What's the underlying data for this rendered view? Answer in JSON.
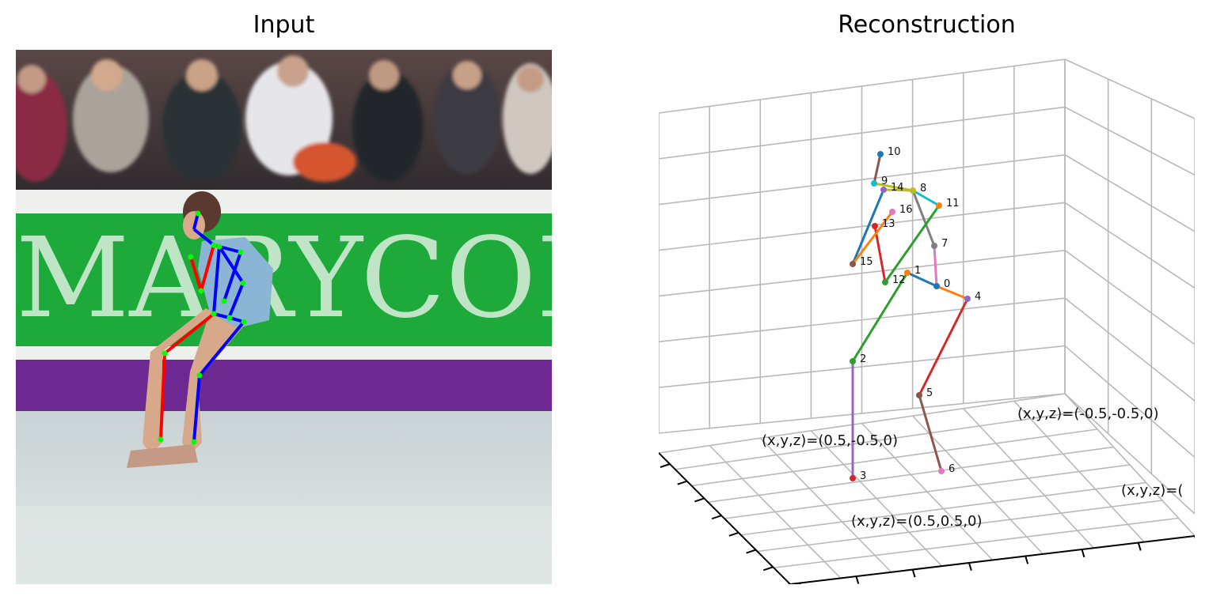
{
  "titles": {
    "left": "Input",
    "right": "Reconstruction"
  },
  "banner_text": "MARYCOH",
  "chart_data": {
    "type": "scatter",
    "subtype": "3d-skeleton",
    "title": "Reconstruction",
    "grid": true,
    "joints": [
      {
        "id": "0",
        "color": "#1f77b4"
      },
      {
        "id": "1",
        "color": "#ff7f0e"
      },
      {
        "id": "2",
        "color": "#2ca02c"
      },
      {
        "id": "3",
        "color": "#d62728"
      },
      {
        "id": "4",
        "color": "#9467bd"
      },
      {
        "id": "5",
        "color": "#8c564b"
      },
      {
        "id": "6",
        "color": "#e377c2"
      },
      {
        "id": "7",
        "color": "#7f7f7f"
      },
      {
        "id": "8",
        "color": "#bcbd22"
      },
      {
        "id": "9",
        "color": "#17becf"
      },
      {
        "id": "10",
        "color": "#1f77b4"
      },
      {
        "id": "11",
        "color": "#ff7f0e"
      },
      {
        "id": "12",
        "color": "#2ca02c"
      },
      {
        "id": "13",
        "color": "#d62728"
      },
      {
        "id": "14",
        "color": "#9467bd"
      },
      {
        "id": "15",
        "color": "#8c564b"
      },
      {
        "id": "16",
        "color": "#e377c2"
      }
    ],
    "bones": [
      {
        "from": "0",
        "to": "1",
        "color": "#1f77b4"
      },
      {
        "from": "0",
        "to": "4",
        "color": "#ff7f0e"
      },
      {
        "from": "1",
        "to": "2",
        "color": "#2ca02c"
      },
      {
        "from": "4",
        "to": "5",
        "color": "#d62728"
      },
      {
        "from": "2",
        "to": "3",
        "color": "#9467bd"
      },
      {
        "from": "5",
        "to": "6",
        "color": "#8c564b"
      },
      {
        "from": "0",
        "to": "7",
        "color": "#e377c2"
      },
      {
        "from": "7",
        "to": "8",
        "color": "#7f7f7f"
      },
      {
        "from": "8",
        "to": "9",
        "color": "#bcbd22"
      },
      {
        "from": "8",
        "to": "11",
        "color": "#17becf"
      },
      {
        "from": "9",
        "to": "10",
        "color": "#8c564b"
      },
      {
        "from": "11",
        "to": "12",
        "color": "#2ca02c"
      },
      {
        "from": "8",
        "to": "14",
        "color": "#bcbd22"
      },
      {
        "from": "14",
        "to": "15",
        "color": "#1f77b4"
      },
      {
        "from": "12",
        "to": "13",
        "color": "#d62728"
      },
      {
        "from": "15",
        "to": "16",
        "color": "#ff7f0e"
      }
    ],
    "corner_labels": [
      "(x,y,z)=(0.5,-0.5,0)",
      "(x,y,z)=(-0.5,-0.5,0)",
      "(x,y,z)=(0.5,0.5,0)",
      "(x,y,z)=("
    ]
  },
  "input_skeleton": {
    "joint_color": "#00ff00",
    "left_color": "#ff0000",
    "right_color": "#0000ff"
  }
}
